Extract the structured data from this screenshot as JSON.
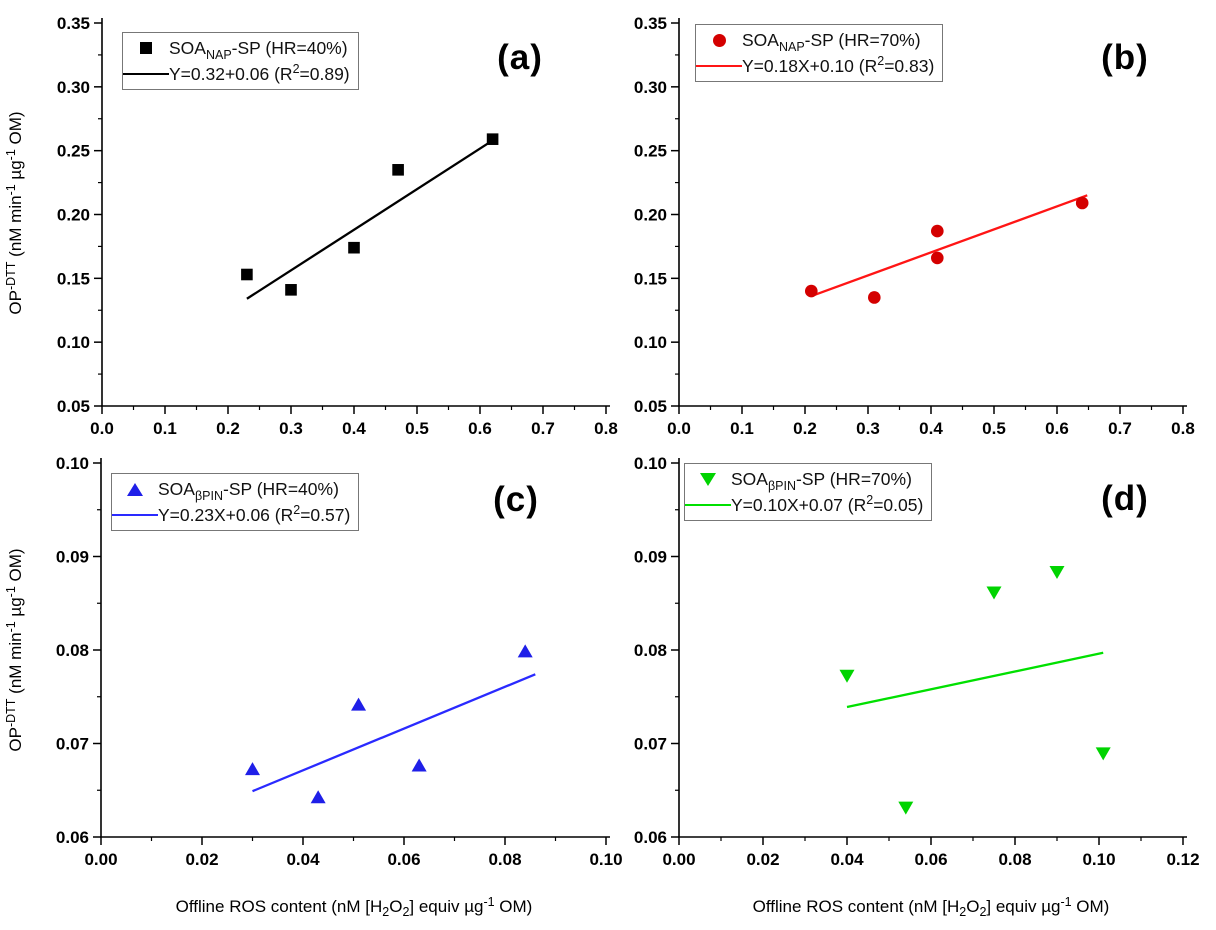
{
  "figure": {
    "background": "#ffffff",
    "ylabel_parts": {
      "p1": "OP",
      "s1": "-DTT",
      "p2": " (nM min",
      "s2": "-1",
      "p3": " µg",
      "s3": "-1",
      "p4": " OM)"
    },
    "xlabel_parts": {
      "p1": "Offline ROS content (nM [H",
      "b1": "2",
      "p2": "O",
      "b2": "2",
      "p3": "] equiv µg",
      "s1": "-1",
      "p4": " OM)"
    }
  },
  "chart_data": [
    {
      "id": "a",
      "letter": "(a)",
      "type": "scatter",
      "series_label": {
        "pre": "SOA",
        "sub": "NAP",
        "post": "-SP (HR=40%)"
      },
      "fit_label": {
        "pre": "Y=0.32+0.06 (R",
        "sup": "2",
        "post": "=0.89)"
      },
      "marker": "square",
      "marker_color": "#000000",
      "line_color": "#000000",
      "points": {
        "x": [
          0.23,
          0.3,
          0.4,
          0.47,
          0.62
        ],
        "y": [
          0.153,
          0.141,
          0.174,
          0.235,
          0.259
        ]
      },
      "fit_line": {
        "x": [
          0.23,
          0.62
        ],
        "y": [
          0.134,
          0.258
        ]
      },
      "xlim": [
        0.0,
        0.8
      ],
      "ylim": [
        0.05,
        0.35
      ],
      "xticks": {
        "values": [
          0.0,
          0.1,
          0.2,
          0.3,
          0.4,
          0.5,
          0.6,
          0.7,
          0.8
        ],
        "labels": [
          "0.0",
          "0.1",
          "0.2",
          "0.3",
          "0.4",
          "0.5",
          "0.6",
          "0.7",
          "0.8"
        ],
        "minor_step": 0.05
      },
      "yticks": {
        "values": [
          0.05,
          0.1,
          0.15,
          0.2,
          0.25,
          0.3,
          0.35
        ],
        "labels": [
          "0.05",
          "0.10",
          "0.15",
          "0.20",
          "0.25",
          "0.30",
          "0.35"
        ],
        "minor_step": 0.025
      }
    },
    {
      "id": "b",
      "letter": "(b)",
      "type": "scatter",
      "series_label": {
        "pre": "SOA",
        "sub": "NAP",
        "post": "-SP (HR=70%)"
      },
      "fit_label": {
        "pre": "Y=0.18X+0.10 (R",
        "sup": "2",
        "post": "=0.83)"
      },
      "marker": "circle",
      "marker_color": "#d40000",
      "line_color": "#ff1515",
      "points": {
        "x": [
          0.21,
          0.31,
          0.41,
          0.41,
          0.64
        ],
        "y": [
          0.14,
          0.135,
          0.187,
          0.166,
          0.209
        ]
      },
      "fit_line": {
        "x": [
          0.215,
          0.648
        ],
        "y": [
          0.137,
          0.215
        ]
      },
      "xlim": [
        0.0,
        0.8
      ],
      "ylim": [
        0.05,
        0.35
      ],
      "xticks": {
        "values": [
          0.0,
          0.1,
          0.2,
          0.3,
          0.4,
          0.5,
          0.6,
          0.7,
          0.8
        ],
        "labels": [
          "0.0",
          "0.1",
          "0.2",
          "0.3",
          "0.4",
          "0.5",
          "0.6",
          "0.7",
          "0.8"
        ],
        "minor_step": 0.05
      },
      "yticks": {
        "values": [
          0.05,
          0.1,
          0.15,
          0.2,
          0.25,
          0.3,
          0.35
        ],
        "labels": [
          "0.05",
          "0.10",
          "0.15",
          "0.20",
          "0.25",
          "0.30",
          "0.35"
        ],
        "minor_step": 0.025
      }
    },
    {
      "id": "c",
      "letter": "(c)",
      "type": "scatter",
      "series_label": {
        "pre": "SOA",
        "sub": "βPIN",
        "post": "-SP (HR=40%)"
      },
      "fit_label": {
        "pre": "Y=0.23X+0.06 (R",
        "sup": "2",
        "post": "=0.57)"
      },
      "marker": "triangle-up",
      "marker_color": "#1f1fe8",
      "line_color": "#2a2aff",
      "points": {
        "x": [
          0.03,
          0.043,
          0.051,
          0.063,
          0.084
        ],
        "y": [
          0.0672,
          0.0642,
          0.0741,
          0.0676,
          0.0798
        ]
      },
      "fit_line": {
        "x": [
          0.03,
          0.086
        ],
        "y": [
          0.0649,
          0.0774
        ]
      },
      "xlim": [
        0.0,
        0.1
      ],
      "ylim": [
        0.06,
        0.1
      ],
      "xticks": {
        "values": [
          0.0,
          0.02,
          0.04,
          0.06,
          0.08,
          0.1
        ],
        "labels": [
          "0.00",
          "0.02",
          "0.04",
          "0.06",
          "0.08",
          "0.10"
        ],
        "minor_step": 0.01
      },
      "yticks": {
        "values": [
          0.06,
          0.07,
          0.08,
          0.09,
          0.1
        ],
        "labels": [
          "0.06",
          "0.07",
          "0.08",
          "0.09",
          "0.10"
        ],
        "minor_step": 0.005
      }
    },
    {
      "id": "d",
      "letter": "(d)",
      "type": "scatter",
      "series_label": {
        "pre": "SOA",
        "sub": "βPIN",
        "post": "-SP (HR=70%)"
      },
      "fit_label": {
        "pre": "Y=0.10X+0.07 (R",
        "sup": "2",
        "post": "=0.05)"
      },
      "marker": "triangle-down",
      "marker_color": "#00d400",
      "line_color": "#00e000",
      "points": {
        "x": [
          0.04,
          0.054,
          0.075,
          0.09,
          0.101
        ],
        "y": [
          0.0773,
          0.0632,
          0.0862,
          0.0884,
          0.069
        ]
      },
      "fit_line": {
        "x": [
          0.04,
          0.101
        ],
        "y": [
          0.0739,
          0.0797
        ]
      },
      "xlim": [
        0.0,
        0.12
      ],
      "ylim": [
        0.06,
        0.1
      ],
      "xticks": {
        "values": [
          0.0,
          0.02,
          0.04,
          0.06,
          0.08,
          0.1,
          0.12
        ],
        "labels": [
          "0.00",
          "0.02",
          "0.04",
          "0.06",
          "0.08",
          "0.10",
          "0.12"
        ],
        "minor_step": 0.01
      },
      "yticks": {
        "values": [
          0.06,
          0.07,
          0.08,
          0.09,
          0.1
        ],
        "labels": [
          "0.06",
          "0.07",
          "0.08",
          "0.09",
          "0.10"
        ],
        "minor_step": 0.005
      }
    }
  ]
}
